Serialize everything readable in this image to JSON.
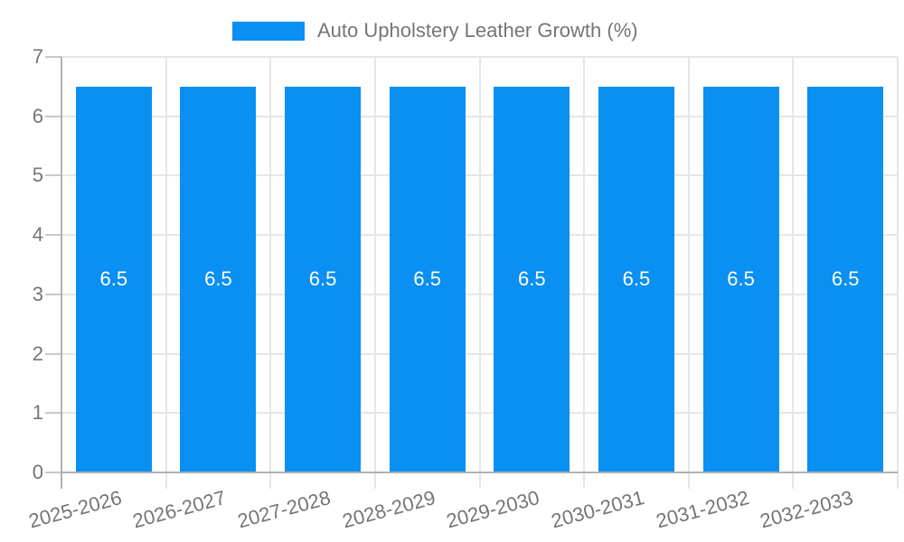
{
  "colors": {
    "bar": "#0a8ff2",
    "text_gray": "#757575",
    "grid": "#e6e6e6",
    "axis": "#b0b0b0",
    "value_text": "#ffffff"
  },
  "legend": {
    "label": "Auto Upholstery Leather Growth (%)"
  },
  "chart_data": {
    "type": "bar",
    "title": "Auto Upholstery Leather Growth (%)",
    "categories": [
      "2025-2026",
      "2026-2027",
      "2027-2028",
      "2028-2029",
      "2029-2030",
      "2030-2031",
      "2031-2032",
      "2032-2033"
    ],
    "values": [
      6.5,
      6.5,
      6.5,
      6.5,
      6.5,
      6.5,
      6.5,
      6.5
    ],
    "bar_value_labels": [
      "6.5",
      "6.5",
      "6.5",
      "6.5",
      "6.5",
      "6.5",
      "6.5",
      "6.5"
    ],
    "xlabel": "",
    "ylabel": "",
    "ylim": [
      0,
      7
    ],
    "yticks": [
      0,
      1,
      2,
      3,
      4,
      5,
      6,
      7
    ],
    "grid": true,
    "legend_position": "top",
    "x_tick_rotation_deg": -15
  }
}
